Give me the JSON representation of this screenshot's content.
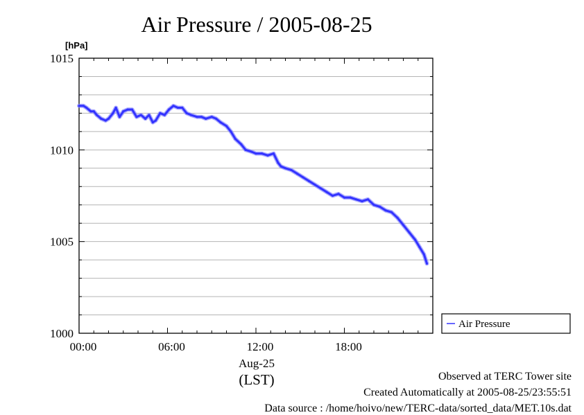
{
  "chart_data": {
    "type": "line",
    "title": "Air Pressure / 2005-08-25",
    "ylabel": "[hPa]",
    "xlabel_date": "Aug-25",
    "xlabel_tz": "(LST)",
    "ylim": [
      1000,
      1015
    ],
    "xlim": [
      0,
      24
    ],
    "yticks": [
      {
        "value": 1000,
        "label": "1000"
      },
      {
        "value": 1005,
        "label": "1005"
      },
      {
        "value": 1010,
        "label": "1010"
      },
      {
        "value": 1015,
        "label": "1015"
      }
    ],
    "xticks": [
      {
        "value": 0,
        "label": "00:00"
      },
      {
        "value": 6,
        "label": "06:00"
      },
      {
        "value": 12,
        "label": "12:00"
      },
      {
        "value": 18,
        "label": "18:00"
      }
    ],
    "grid": true,
    "legend_position": "right-bottom",
    "series": [
      {
        "name": "Air Pressure",
        "color": "#3333ff",
        "x": [
          0.0,
          0.3,
          0.5,
          0.8,
          1.0,
          1.2,
          1.5,
          1.8,
          2.0,
          2.3,
          2.5,
          2.75,
          3.0,
          3.3,
          3.6,
          3.9,
          4.2,
          4.5,
          4.75,
          5.0,
          5.2,
          5.5,
          5.8,
          6.1,
          6.4,
          6.7,
          7.0,
          7.3,
          7.6,
          8.0,
          8.3,
          8.6,
          9.0,
          9.3,
          9.6,
          10.0,
          10.3,
          10.6,
          11.0,
          11.3,
          11.7,
          12.0,
          12.4,
          12.8,
          13.2,
          13.5,
          13.7,
          14.0,
          14.4,
          14.8,
          15.2,
          15.6,
          16.0,
          16.4,
          16.8,
          17.2,
          17.6,
          18.0,
          18.4,
          18.8,
          19.2,
          19.6,
          20.0,
          20.4,
          20.8,
          21.2,
          21.6,
          22.0,
          22.4,
          22.8,
          23.1,
          23.4,
          23.6
        ],
        "values": [
          1012.4,
          1012.4,
          1012.3,
          1012.1,
          1012.1,
          1011.9,
          1011.7,
          1011.6,
          1011.7,
          1012.0,
          1012.3,
          1011.8,
          1012.1,
          1012.2,
          1012.2,
          1011.8,
          1011.9,
          1011.7,
          1011.9,
          1011.5,
          1011.6,
          1012.0,
          1011.9,
          1012.2,
          1012.4,
          1012.3,
          1012.3,
          1012.0,
          1011.9,
          1011.8,
          1011.8,
          1011.7,
          1011.8,
          1011.7,
          1011.5,
          1011.3,
          1011.0,
          1010.6,
          1010.3,
          1010.0,
          1009.9,
          1009.8,
          1009.8,
          1009.7,
          1009.8,
          1009.3,
          1009.1,
          1009.0,
          1008.9,
          1008.7,
          1008.5,
          1008.3,
          1008.1,
          1007.9,
          1007.7,
          1007.5,
          1007.6,
          1007.4,
          1007.4,
          1007.3,
          1007.2,
          1007.3,
          1007.0,
          1006.9,
          1006.7,
          1006.6,
          1006.3,
          1005.9,
          1005.5,
          1005.1,
          1004.7,
          1004.3,
          1003.8
        ]
      }
    ]
  },
  "footer": {
    "site": "Observed at TERC Tower site",
    "created": "Created Automatically at 2005-08-25/23:55:51",
    "source": "Data source : /home/hoivo/new/TERC-data/sorted_data/MET.10s.dat"
  }
}
